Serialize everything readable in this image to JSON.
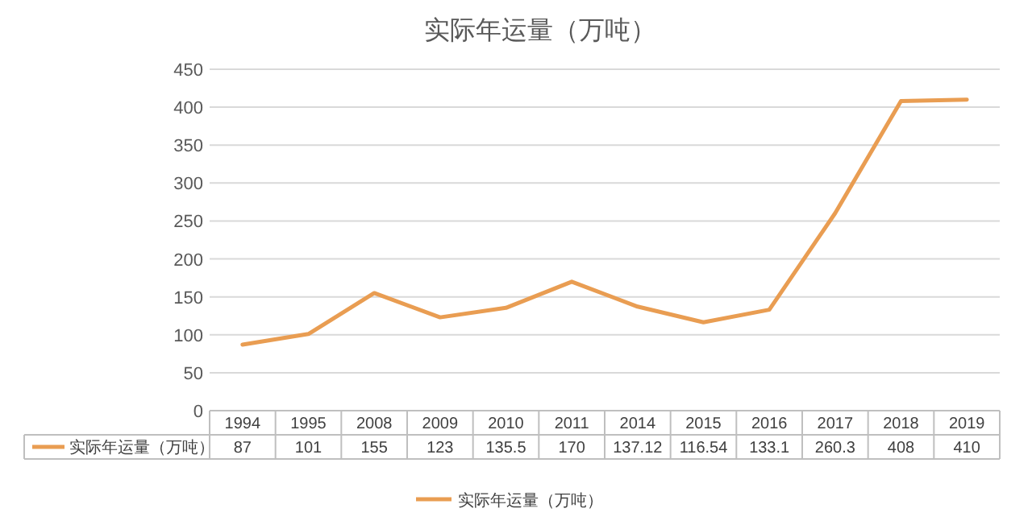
{
  "chart_data": {
    "type": "line",
    "title": "实际年运量（万吨）",
    "categories": [
      "1994",
      "1995",
      "2008",
      "2009",
      "2010",
      "2011",
      "2014",
      "2015",
      "2016",
      "2017",
      "2018",
      "2019"
    ],
    "series": [
      {
        "name": "实际年运量（万吨）",
        "color": "#e99d52",
        "values": [
          87,
          101,
          155,
          123,
          135.5,
          170,
          137.12,
          116.54,
          133.1,
          260.3,
          408,
          410
        ]
      }
    ],
    "ylim": [
      0,
      450
    ],
    "yticks": [
      0,
      50,
      100,
      150,
      200,
      250,
      300,
      350,
      400,
      450
    ],
    "grid": "y",
    "legend": "bottom",
    "data_labels": true
  }
}
